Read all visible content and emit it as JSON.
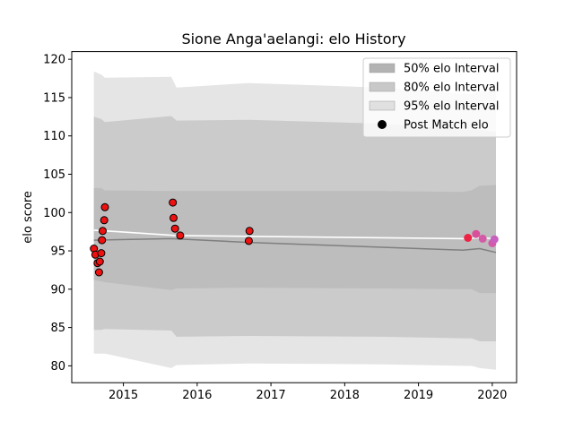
{
  "chart_data": {
    "type": "line",
    "title": "Sione Anga'aelangi: elo History",
    "xlabel": "",
    "ylabel": "elo score",
    "xlim": [
      2014.3,
      2020.33
    ],
    "ylim": [
      77.8,
      121.0
    ],
    "xticks": [
      2015,
      2016,
      2017,
      2018,
      2019,
      2020
    ],
    "xtick_labels": [
      "2015",
      "2016",
      "2017",
      "2018",
      "2019",
      "2020"
    ],
    "yticks": [
      80,
      85,
      90,
      95,
      100,
      105,
      110,
      115,
      120
    ],
    "ytick_labels": [
      "80",
      "85",
      "90",
      "95",
      "100",
      "105",
      "110",
      "115",
      "120"
    ],
    "legend_position": "top-right",
    "legend": [
      {
        "label": "50% elo Interval",
        "kind": "band",
        "color": "#b3b3b3"
      },
      {
        "label": "80% elo Interval",
        "kind": "band",
        "color": "#c8c8c8"
      },
      {
        "label": "95% elo Interval",
        "kind": "band",
        "color": "#e0e0e0"
      },
      {
        "label": "Post Match elo",
        "kind": "marker",
        "color": "#000000"
      }
    ],
    "bands": [
      {
        "name": "95% elo Interval",
        "color": "#e5e5e5",
        "x": [
          2014.6,
          2014.7,
          2014.75,
          2015.65,
          2015.72,
          2016.7,
          2018.5,
          2019.6,
          2019.72,
          2019.83,
          2020.05
        ],
        "upper": [
          118.4,
          118.0,
          117.6,
          117.7,
          116.3,
          116.9,
          116.3,
          115.5,
          115.5,
          115.8,
          115.8
        ],
        "lower": [
          81.6,
          81.6,
          81.6,
          79.7,
          80.1,
          80.3,
          80.2,
          80.0,
          80.0,
          79.7,
          79.5
        ]
      },
      {
        "name": "80% elo Interval",
        "color": "#cbcbcb",
        "x": [
          2014.6,
          2014.7,
          2014.75,
          2015.65,
          2015.72,
          2016.7,
          2018.5,
          2019.6,
          2019.72,
          2019.83,
          2020.05
        ],
        "upper": [
          112.5,
          112.2,
          111.8,
          112.6,
          112.0,
          112.1,
          111.6,
          110.8,
          110.8,
          110.8,
          110.5
        ],
        "lower": [
          84.7,
          84.7,
          84.8,
          84.6,
          83.8,
          83.9,
          83.8,
          83.6,
          83.6,
          83.2,
          83.2
        ]
      },
      {
        "name": "50% elo Interval",
        "color": "#bdbdbd",
        "x": [
          2014.6,
          2014.7,
          2014.75,
          2015.65,
          2015.72,
          2016.7,
          2018.5,
          2019.6,
          2019.72,
          2019.83,
          2020.05
        ],
        "upper": [
          103.2,
          103.2,
          102.9,
          102.8,
          102.8,
          102.8,
          102.8,
          102.7,
          102.9,
          103.5,
          103.6
        ],
        "lower": [
          91.2,
          91.0,
          90.9,
          89.9,
          90.1,
          90.2,
          90.1,
          90.0,
          90.0,
          89.5,
          89.5
        ]
      }
    ],
    "series": [
      {
        "kind": "mean",
        "x": [
          2014.6,
          2015.72,
          2016.7,
          2019.6,
          2019.83,
          2020.05
        ],
        "y": [
          97.7,
          97.0,
          96.9,
          96.6,
          96.7,
          96.6
        ],
        "color": "#ffffff"
      },
      {
        "kind": "median",
        "x": [
          2014.6,
          2015.65,
          2016.7,
          2019.6,
          2019.83,
          2020.05
        ],
        "y": [
          96.4,
          96.6,
          96.1,
          95.1,
          95.3,
          94.8
        ],
        "color": "#7f7f7f"
      },
      {
        "kind": "points",
        "name": "Post Match elo",
        "x": [
          2014.6,
          2014.62,
          2014.65,
          2014.67,
          2014.68,
          2014.7,
          2014.71,
          2014.72,
          2014.74,
          2014.75,
          2015.67,
          2015.68,
          2015.7,
          2015.77,
          2016.7,
          2016.71,
          2019.67,
          2019.78,
          2019.87,
          2020.0,
          2020.03
        ],
        "y": [
          95.3,
          94.5,
          93.4,
          92.2,
          93.6,
          94.7,
          96.4,
          97.6,
          99.0,
          100.7,
          101.3,
          99.3,
          97.9,
          97.0,
          96.3,
          97.6,
          96.7,
          97.2,
          96.6,
          96.0,
          96.5
        ],
        "colors": [
          "#ee1111",
          "#ee1111",
          "#ee1111",
          "#ee1111",
          "#ee1111",
          "#ee1111",
          "#ee1111",
          "#ee1111",
          "#ee1111",
          "#ee1111",
          "#ee1111",
          "#ee1111",
          "#ee1111",
          "#ee1111",
          "#ee1111",
          "#ee1111",
          "#ee2244",
          "#d9509a",
          "#d45aa8",
          "#d45aa8",
          "#c860c0"
        ],
        "edge_colors": [
          "#000",
          "#000",
          "#000",
          "#000",
          "#000",
          "#000",
          "#000",
          "#000",
          "#000",
          "#000",
          "#000",
          "#000",
          "#000",
          "#000",
          "#000",
          "#000",
          "#ee2244",
          "#d9509a",
          "#d45aa8",
          "#d45aa8",
          "#c860c0"
        ]
      }
    ]
  }
}
